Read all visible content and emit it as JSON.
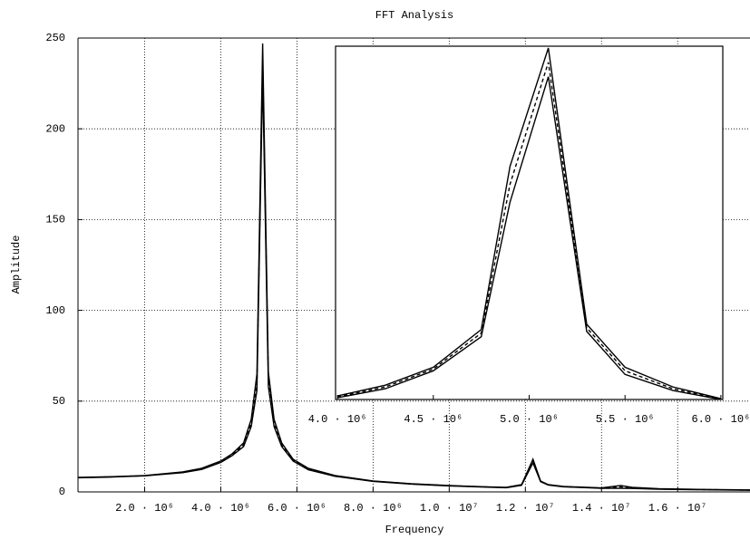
{
  "chart_data": [
    {
      "type": "line",
      "title": "FFT Analysis",
      "xlabel": "Frequency",
      "ylabel": "Amplitude",
      "x": [
        250000,
        1000000,
        2000000,
        3000000,
        3500000,
        4000000,
        4300000,
        4600000,
        4800000,
        4950000,
        5100000,
        5250000,
        5400000,
        5600000,
        5900000,
        6300000,
        7000000,
        8000000,
        9000000,
        10000000,
        11000000,
        11500000,
        11900000,
        12200000,
        12400000,
        12600000,
        13000000,
        14000000,
        14500000,
        14800000,
        15500000,
        16500000,
        17900000
      ],
      "series": [
        {
          "color": "#000000",
          "dash": "solid",
          "values": [
            8,
            8.3,
            9,
            11,
            13,
            17,
            21,
            27,
            40,
            65,
            247,
            66,
            40,
            27,
            18,
            13,
            9,
            6,
            4.5,
            3.5,
            2.8,
            2.5,
            4,
            18,
            6,
            4,
            3,
            2.2,
            3.5,
            2.5,
            1.8,
            1.4,
            1.1
          ]
        },
        {
          "color": "#000000",
          "dash": "dashed",
          "values": [
            7.9,
            8.2,
            8.9,
            10.8,
            12.7,
            16.6,
            20.5,
            26,
            38,
            60,
            238,
            62,
            38,
            26,
            17.5,
            12.6,
            8.8,
            5.9,
            4.4,
            3.4,
            2.7,
            2.4,
            3.8,
            17,
            5.8,
            3.9,
            2.9,
            2.1,
            2.8,
            2.2,
            1.6,
            1.3,
            1
          ]
        },
        {
          "color": "#000000",
          "dash": "solid",
          "values": [
            7.8,
            8.1,
            8.8,
            10.6,
            12.4,
            16.2,
            20,
            25,
            36,
            56,
            230,
            58,
            36,
            25,
            17,
            12.2,
            8.6,
            5.8,
            4.3,
            3.3,
            2.6,
            2.3,
            3.6,
            16,
            5.6,
            3.8,
            2.8,
            2,
            2,
            1.9,
            1.5,
            1.2,
            0.9
          ]
        }
      ],
      "xlim": [
        250000,
        17900000
      ],
      "ylim": [
        0,
        250
      ],
      "xticks": [
        {
          "value": 2000000,
          "label": "2.0 · 10⁶"
        },
        {
          "value": 4000000,
          "label": "4.0 · 10⁶"
        },
        {
          "value": 6000000,
          "label": "6.0 · 10⁶"
        },
        {
          "value": 8000000,
          "label": "8.0 · 10⁶"
        },
        {
          "value": 10000000,
          "label": "1.0 · 10⁷"
        },
        {
          "value": 12000000,
          "label": "1.2 · 10⁷"
        },
        {
          "value": 14000000,
          "label": "1.4 · 10⁷"
        },
        {
          "value": 16000000,
          "label": "1.6 · 10⁷"
        }
      ],
      "yticks": [
        0,
        50,
        100,
        150,
        200,
        250
      ],
      "grid": true
    },
    {
      "type": "line",
      "x": [
        4000000,
        4250000,
        4500000,
        4750000,
        4900000,
        5100000,
        5300000,
        5500000,
        5750000,
        6000000
      ],
      "series": [
        {
          "color": "#000000",
          "dash": "solid",
          "values": [
            52,
            58,
            68,
            89,
            180,
            246,
            92,
            68,
            57,
            50.5
          ]
        },
        {
          "color": "#000000",
          "dash": "dashed",
          "values": [
            51.5,
            57,
            67,
            87,
            170,
            238,
            90,
            66,
            56,
            50.2
          ]
        },
        {
          "color": "#000000",
          "dash": "solid",
          "values": [
            51,
            56,
            66,
            85,
            160,
            230,
            88,
            64,
            55,
            50
          ]
        }
      ],
      "xlim": [
        3990000,
        6010000
      ],
      "ylim": [
        50,
        247
      ],
      "xticks": [
        {
          "value": 4000000,
          "label": "4.0 · 10⁶"
        },
        {
          "value": 4500000,
          "label": "4.5 · 10⁶"
        },
        {
          "value": 5000000,
          "label": "5.0 · 10⁶"
        },
        {
          "value": 5500000,
          "label": "5.5 · 10⁶"
        },
        {
          "value": 6000000,
          "label": "6.0 · 10⁶"
        }
      ]
    }
  ]
}
